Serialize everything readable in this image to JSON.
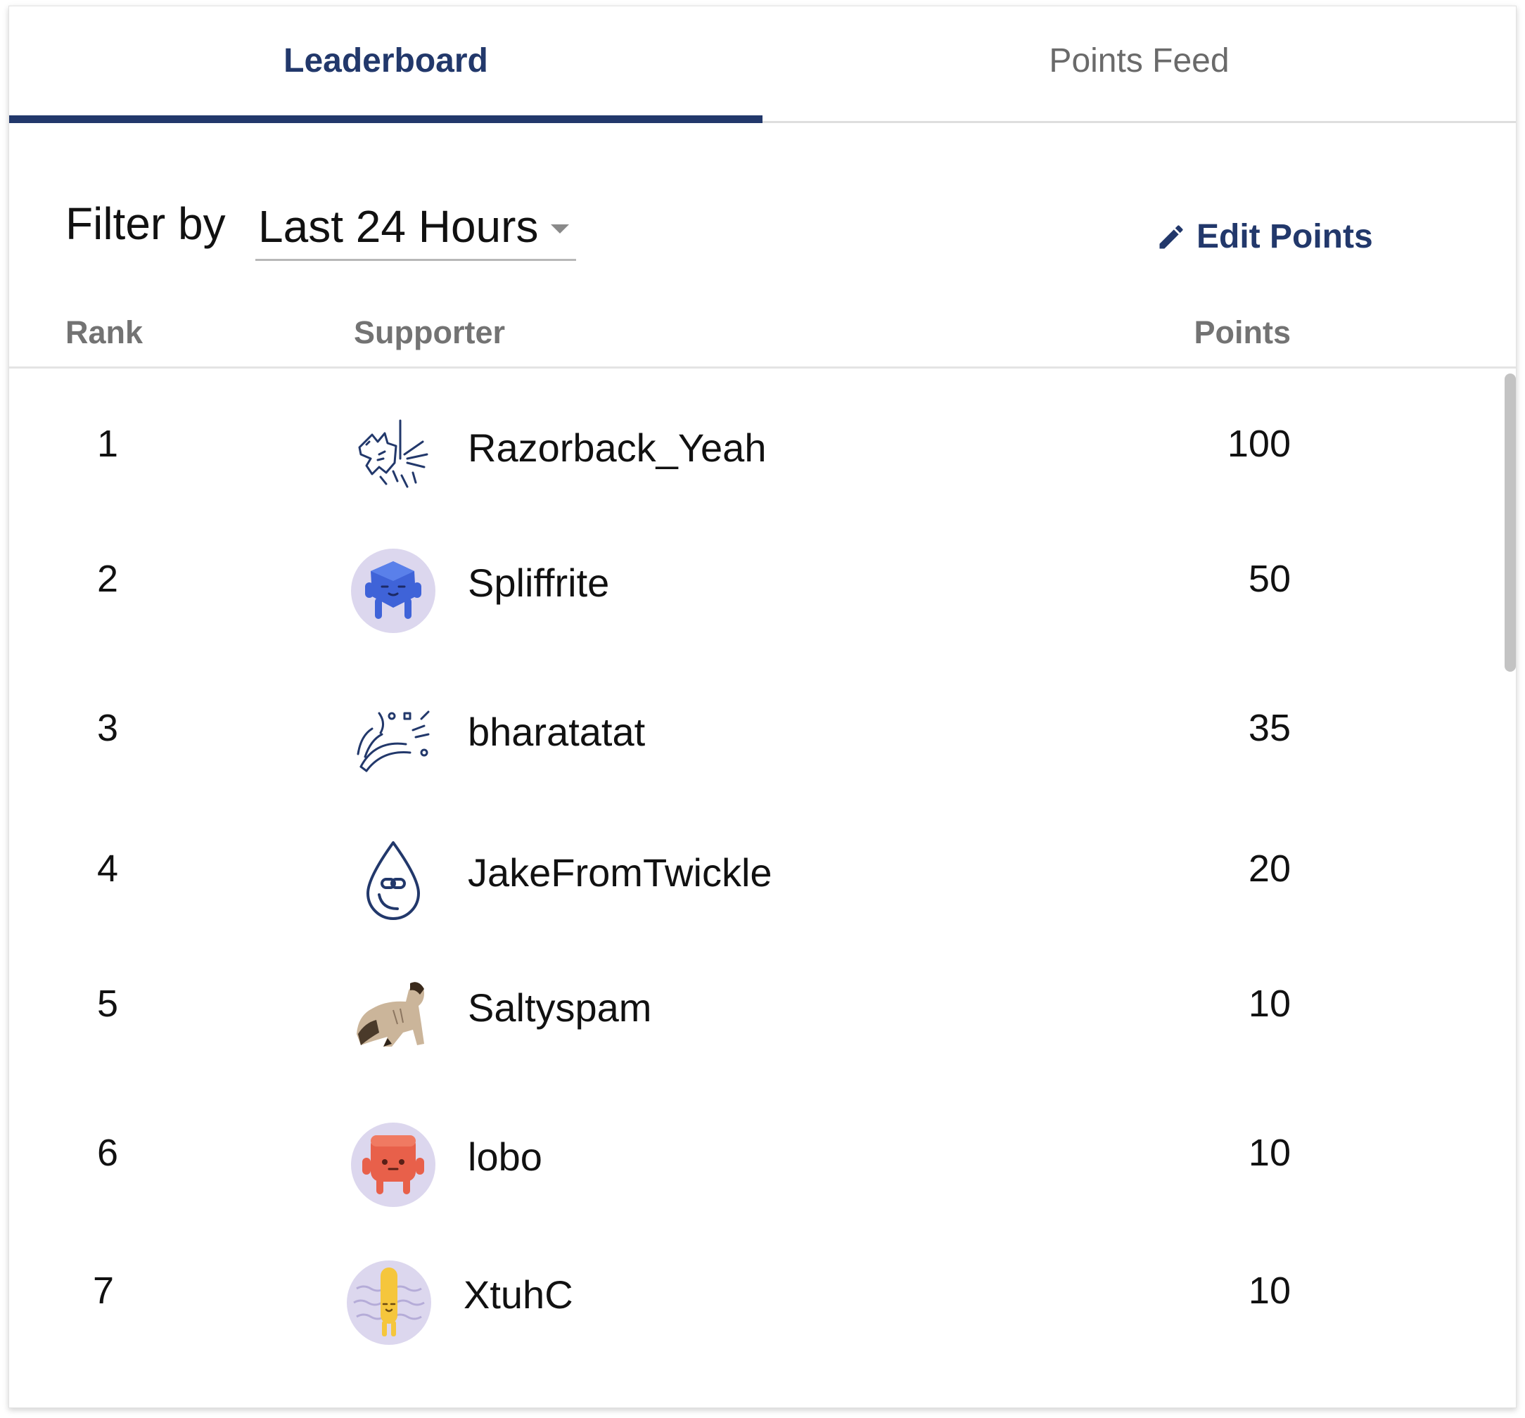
{
  "tabs": [
    {
      "label": "Leaderboard",
      "active": true
    },
    {
      "label": "Points Feed",
      "active": false
    }
  ],
  "filter": {
    "label": "Filter by",
    "selected": "Last 24 Hours"
  },
  "edit_points": {
    "label": "Edit Points",
    "icon": "pencil-icon"
  },
  "columns": {
    "rank": "Rank",
    "supporter": "Supporter",
    "points": "Points"
  },
  "rows": [
    {
      "rank": "1",
      "name": "Razorback_Yeah",
      "points": "100",
      "avatar": "unicorn-line-icon"
    },
    {
      "rank": "2",
      "name": "Spliffrite",
      "points": "50",
      "avatar": "blue-blob-avatar"
    },
    {
      "rank": "3",
      "name": "bharatatat",
      "points": "35",
      "avatar": "party-popper-line-icon"
    },
    {
      "rank": "4",
      "name": "JakeFromTwickle",
      "points": "20",
      "avatar": "water-drop-line-icon"
    },
    {
      "rank": "5",
      "name": "Saltyspam",
      "points": "10",
      "avatar": "photo-avatar"
    },
    {
      "rank": "6",
      "name": "lobo",
      "points": "10",
      "avatar": "red-blob-avatar"
    },
    {
      "rank": "7",
      "name": "XtuhC",
      "points": "10",
      "avatar": "yellow-blob-avatar"
    }
  ],
  "colors": {
    "accent": "#22386b",
    "muted_text": "#737373",
    "avatar_bg": "#dcd7ee"
  }
}
